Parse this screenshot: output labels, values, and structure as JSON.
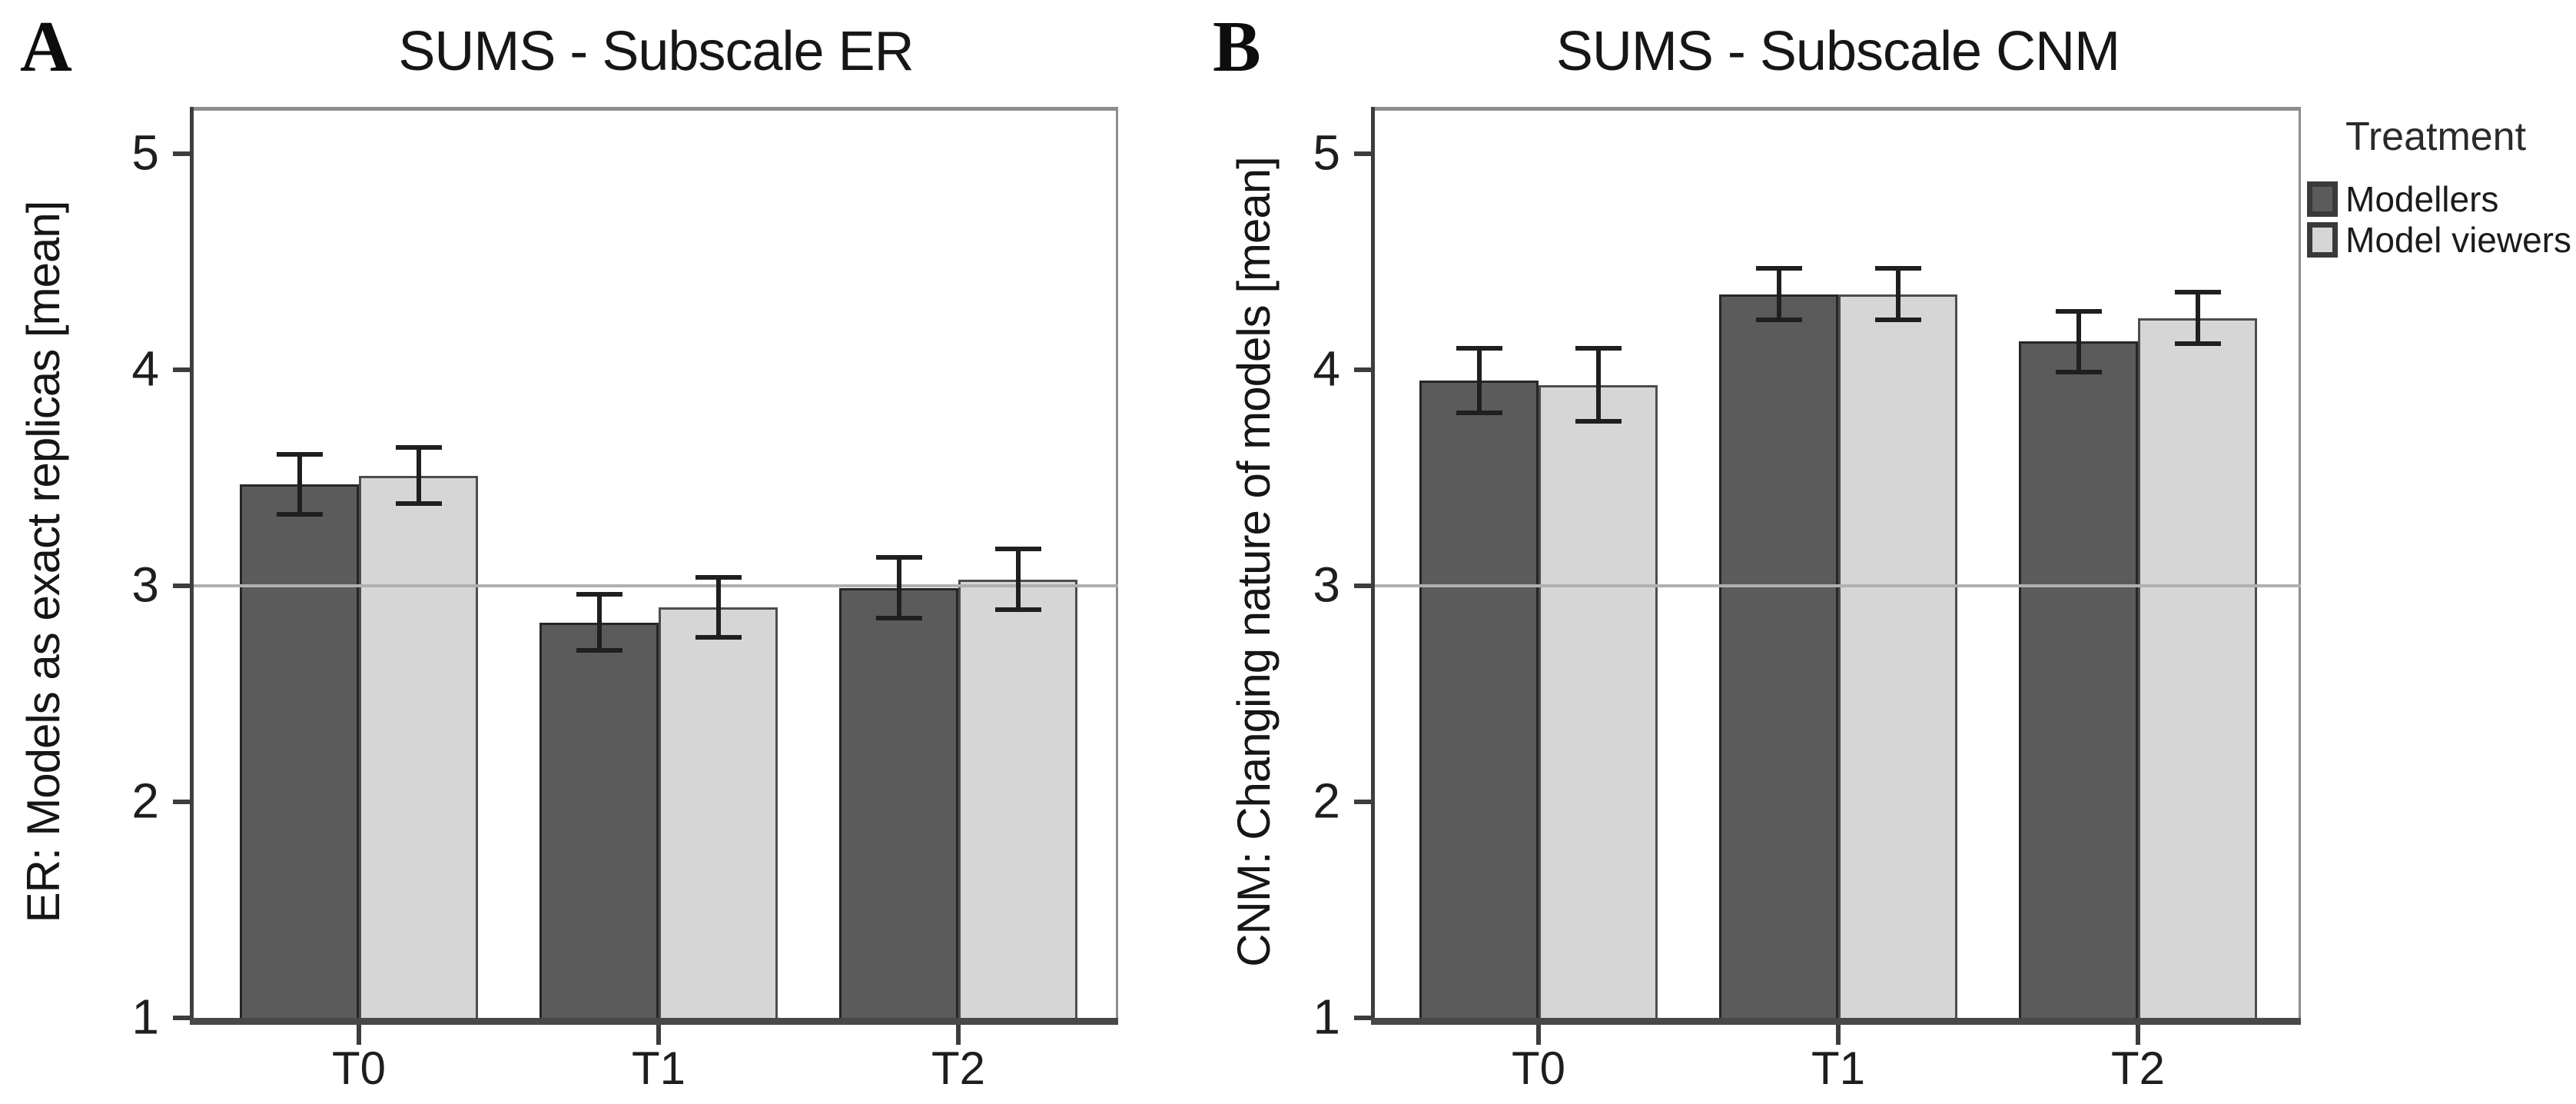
{
  "figure": {
    "background": "#ffffff",
    "legend": {
      "title": "Treatment",
      "items": [
        {
          "label": "Modellers",
          "color": "#5b5b5b",
          "border": "#3a3a3a"
        },
        {
          "label": "Model viewers",
          "color": "#d6d6d6",
          "border": "#3a3a3a"
        }
      ]
    },
    "colors": {
      "frame": "#8d8d8d",
      "axis": "#3d3d3d",
      "bottom_axis": "#484848",
      "gridline": "#b0b0b0",
      "error_bar": "#1f1f1f"
    }
  },
  "chart_data": [
    {
      "type": "bar",
      "panel_letter": "A",
      "title": "SUMS - Subscale ER",
      "ylabel": "ER: Models as exact replicas [mean]",
      "xlabel": "",
      "categories": [
        "T0",
        "T1",
        "T2"
      ],
      "yticks": [
        5,
        4,
        3,
        2,
        1
      ],
      "ylim": [
        1,
        5.2
      ],
      "gridline_at": 3,
      "grid": "single-line-at-3",
      "legend_position": "none",
      "series": [
        {
          "name": "Modellers",
          "color": "#5b5b5b",
          "border": "#262626",
          "values": [
            3.47,
            2.83,
            2.99
          ],
          "errors": [
            0.14,
            0.13,
            0.14
          ]
        },
        {
          "name": "Model viewers",
          "color": "#d6d6d6",
          "border": "#4d4d4d",
          "values": [
            3.51,
            2.9,
            3.03
          ],
          "errors": [
            0.13,
            0.14,
            0.14
          ]
        }
      ]
    },
    {
      "type": "bar",
      "panel_letter": "B",
      "title": "SUMS - Subscale CNM",
      "ylabel": "CNM: Changing nature of models [mean]",
      "xlabel": "",
      "categories": [
        "T0",
        "T1",
        "T2"
      ],
      "yticks": [
        5,
        4,
        3,
        2,
        1
      ],
      "ylim": [
        1,
        5.2
      ],
      "gridline_at": 3,
      "grid": "single-line-at-3",
      "legend_position": "right",
      "series": [
        {
          "name": "Modellers",
          "color": "#5b5b5b",
          "border": "#262626",
          "values": [
            3.95,
            4.35,
            4.13
          ],
          "errors": [
            0.15,
            0.12,
            0.14
          ]
        },
        {
          "name": "Model viewers",
          "color": "#d6d6d6",
          "border": "#4d4d4d",
          "values": [
            3.93,
            4.35,
            4.24
          ],
          "errors": [
            0.17,
            0.12,
            0.12
          ]
        }
      ]
    }
  ]
}
